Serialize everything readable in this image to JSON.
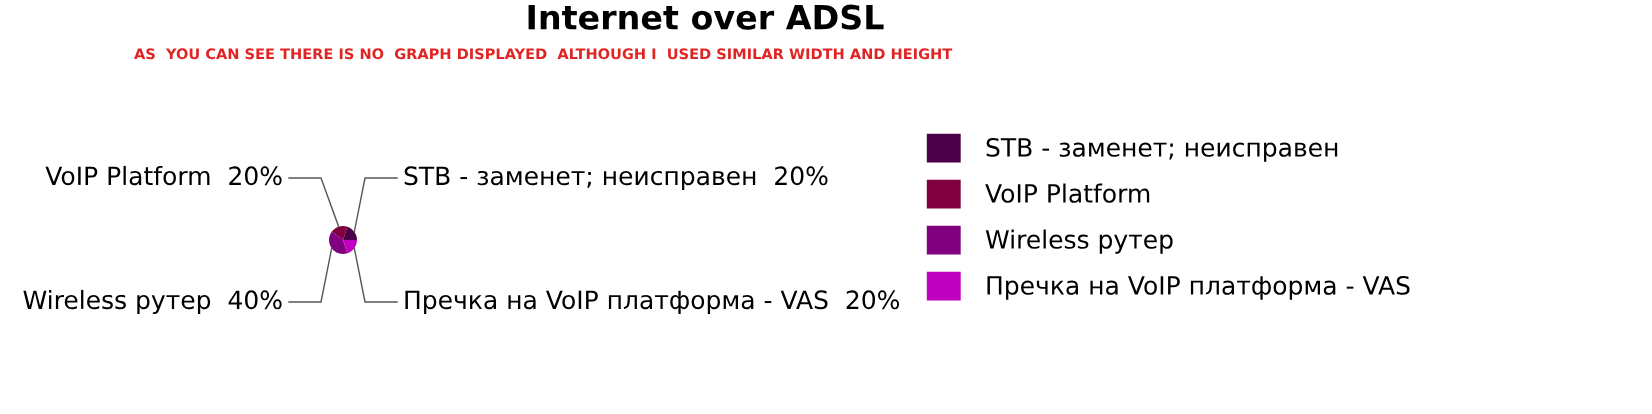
{
  "chart_data": {
    "type": "pie",
    "title": "Internet over ADSL",
    "annotations": [
      "AS  YOU CAN SEE THERE IS NO  GRAPH DISPLAYED  ALTHOUGH I  USED SIMILAR WIDTH AND HEIGHT"
    ],
    "categories": [
      "STB - заменет; неисправен",
      "VoIP Platform",
      "Wireless рутер",
      "Пречка на VoIP платформа - VAS"
    ],
    "values": [
      20,
      20,
      40,
      20
    ],
    "value_labels": [
      "20%",
      "20%",
      "40%",
      "20%"
    ],
    "colors": [
      "#4b0049",
      "#800040",
      "#800080",
      "#c000c0"
    ],
    "legend": "right"
  }
}
